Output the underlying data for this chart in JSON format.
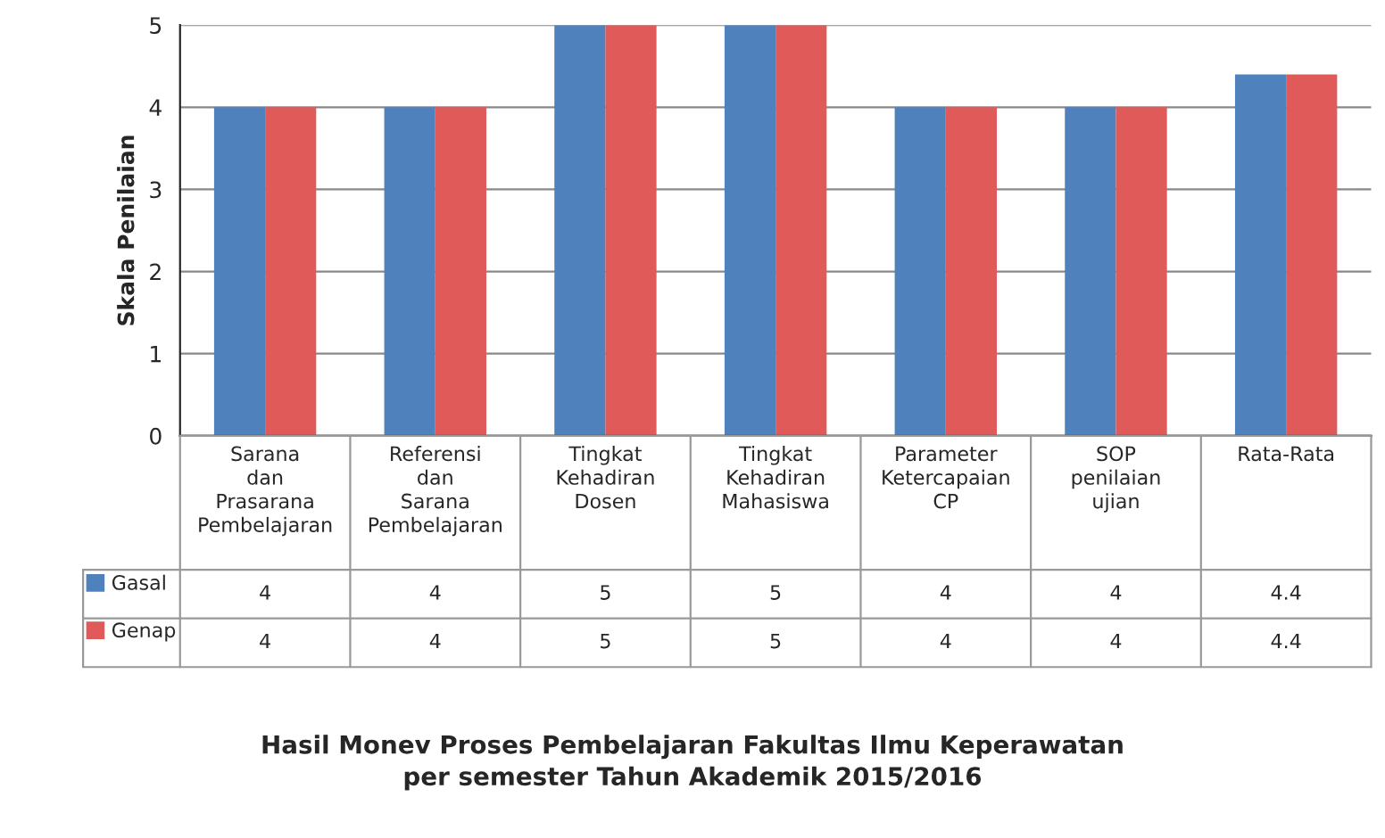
{
  "chart_data": {
    "type": "bar",
    "title": "Hasil Monev Proses Pembelajaran Fakultas Ilmu Keperawatan\nper semester Tahun Akademik 2015/2016",
    "ylabel": "Skala Penilaian",
    "categories": [
      "Sarana dan Prasarana Pembelajaran",
      "Referensi dan Sarana Pembelajaran",
      "Tingkat Kehadiran Dosen",
      "Tingkat Kehadiran Mahasiswa",
      "Parameter Ketercapaian CP",
      "SOP penilaian ujian",
      "Rata-Rata"
    ],
    "series": [
      {
        "name": "Gasal",
        "color": "#4f81bd",
        "values": [
          4,
          4,
          5,
          5,
          4,
          4,
          4.4
        ]
      },
      {
        "name": "Genap",
        "color": "#e05a5a",
        "values": [
          4,
          4,
          5,
          5,
          4,
          4,
          4.4
        ]
      }
    ],
    "ylim": [
      0,
      5
    ],
    "yticks": [
      0,
      1,
      2,
      3,
      4,
      5
    ],
    "grid": "y",
    "legend": "bottom left",
    "data_labels": true
  }
}
